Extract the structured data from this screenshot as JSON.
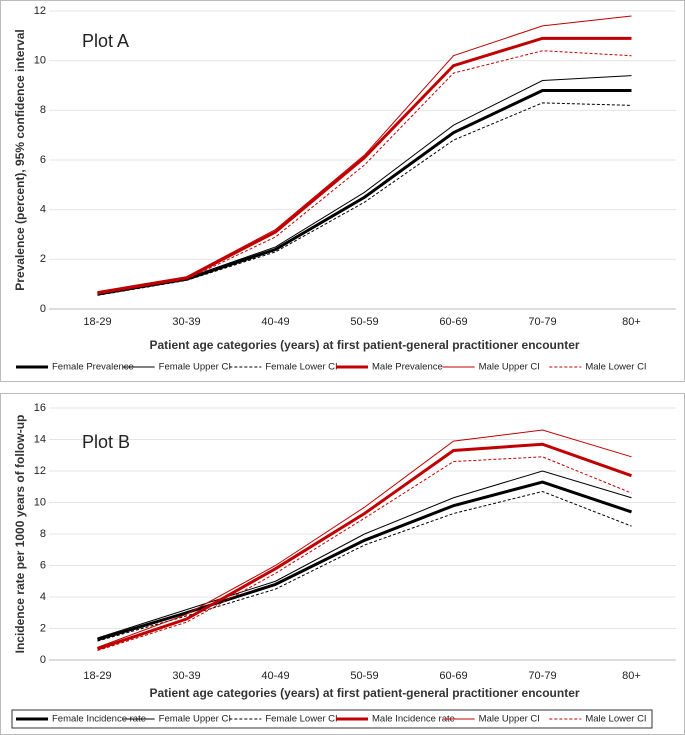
{
  "chart_data": [
    {
      "type": "line",
      "title": "Plot A",
      "x_label": "Patient age categories (years) at first patient-general practitioner encounter",
      "y_label": "Prevalence (percent), 95% confidence interval",
      "categories": [
        "18-29",
        "30-39",
        "40-49",
        "50-59",
        "60-69",
        "70-79",
        "80+"
      ],
      "ylim": [
        0,
        12
      ],
      "yticks": [
        0,
        2,
        4,
        6,
        8,
        10,
        12
      ],
      "grid": true,
      "series": [
        {
          "name": "Female Prevalence",
          "color": "#000000",
          "width": 3,
          "dashed": false,
          "values": [
            0.6,
            1.2,
            2.4,
            4.5,
            7.1,
            8.8,
            8.8
          ]
        },
        {
          "name": "Female Upper CI",
          "color": "#000000",
          "width": 1,
          "dashed": false,
          "values": [
            0.65,
            1.25,
            2.5,
            4.7,
            7.4,
            9.2,
            9.4
          ]
        },
        {
          "name": "Female Lower CI",
          "color": "#000000",
          "width": 1,
          "dashed": true,
          "values": [
            0.55,
            1.15,
            2.3,
            4.3,
            6.8,
            8.3,
            8.2
          ]
        },
        {
          "name": "Male Prevalence",
          "color": "#c00000",
          "width": 3,
          "dashed": false,
          "values": [
            0.65,
            1.25,
            3.1,
            6.1,
            9.8,
            10.9,
            10.9
          ]
        },
        {
          "name": "Male Upper CI",
          "color": "#c00000",
          "width": 1,
          "dashed": false,
          "values": [
            0.7,
            1.3,
            3.2,
            6.2,
            10.2,
            11.4,
            11.8
          ]
        },
        {
          "name": "Male Lower CI",
          "color": "#c00000",
          "width": 1,
          "dashed": true,
          "values": [
            0.6,
            1.2,
            2.9,
            5.8,
            9.5,
            10.4,
            10.2
          ]
        }
      ]
    },
    {
      "type": "line",
      "title": "Plot B",
      "x_label": "Patient age categories (years) at first patient-general practitioner encounter",
      "y_label": "Incidence rate per 1000 years of follow-up",
      "categories": [
        "18-29",
        "30-39",
        "40-49",
        "50-59",
        "60-69",
        "70-79",
        "80+"
      ],
      "ylim": [
        0,
        16
      ],
      "yticks": [
        0,
        2,
        4,
        6,
        8,
        10,
        12,
        14,
        16
      ],
      "grid": true,
      "series": [
        {
          "name": "Female Incidence rate",
          "color": "#000000",
          "width": 3,
          "dashed": false,
          "values": [
            1.3,
            3.0,
            4.8,
            7.6,
            9.8,
            11.3,
            9.4
          ]
        },
        {
          "name": "Female Upper CI",
          "color": "#000000",
          "width": 1,
          "dashed": false,
          "values": [
            1.4,
            3.2,
            5.0,
            8.0,
            10.3,
            12.0,
            10.3
          ]
        },
        {
          "name": "Female Lower CI",
          "color": "#000000",
          "width": 1,
          "dashed": true,
          "values": [
            1.2,
            2.8,
            4.5,
            7.3,
            9.3,
            10.7,
            8.5
          ]
        },
        {
          "name": "Male Incidence rate",
          "color": "#c00000",
          "width": 3,
          "dashed": false,
          "values": [
            0.7,
            2.6,
            5.8,
            9.3,
            13.3,
            13.7,
            11.7
          ]
        },
        {
          "name": "Male Upper CI",
          "color": "#c00000",
          "width": 1,
          "dashed": false,
          "values": [
            0.8,
            2.9,
            6.0,
            9.7,
            13.9,
            14.6,
            12.9
          ]
        },
        {
          "name": "Male Lower CI",
          "color": "#c00000",
          "width": 1,
          "dashed": true,
          "values": [
            0.6,
            2.4,
            5.5,
            9.0,
            12.6,
            12.9,
            10.6
          ]
        }
      ]
    }
  ]
}
